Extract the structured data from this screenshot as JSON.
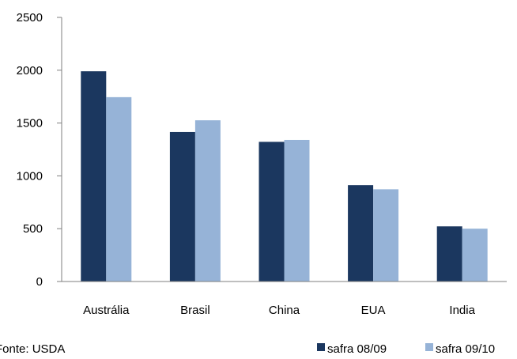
{
  "chart_data": {
    "type": "bar",
    "title": "",
    "xlabel": "",
    "ylabel": "",
    "categories": [
      "Austrália",
      "Brasil",
      "China",
      "EUA",
      "India"
    ],
    "series": [
      {
        "name": "safra 08/09",
        "color": "#1b375f",
        "values": [
          1990,
          1415,
          1322,
          912,
          522
        ]
      },
      {
        "name": "safra 09/10",
        "color": "#96b3d7",
        "values": [
          1745,
          1526,
          1340,
          873,
          500
        ]
      }
    ],
    "ylim": [
      0,
      2500
    ],
    "yticks": [
      "0",
      "500",
      "1000",
      "1500",
      "2000",
      "2500"
    ],
    "grid": false,
    "legend_position": "bottom-right"
  },
  "source_note": "Fonte: USDA"
}
